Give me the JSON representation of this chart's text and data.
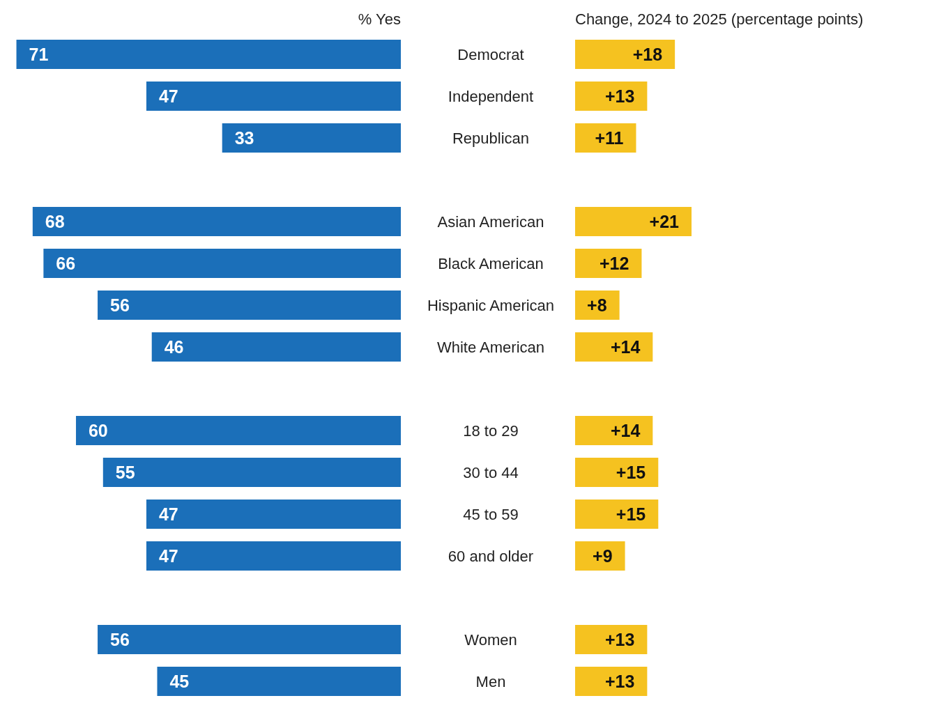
{
  "chart_data": [
    {
      "type": "bar",
      "orientation": "horizontal",
      "title": "% Yes",
      "tick_labels": "y",
      "categories": [
        "Democrat",
        "Independent",
        "Republican",
        null,
        "Asian American",
        "Black American",
        "Hispanic American",
        "White American",
        null,
        "18 to 29",
        "30 to 44",
        "45 to 59",
        "60 and older",
        null,
        "Women",
        "Men"
      ],
      "values": [
        71,
        47,
        33,
        null,
        68,
        66,
        56,
        46,
        null,
        60,
        55,
        47,
        47,
        null,
        56,
        45
      ],
      "color": "#1b6fb9",
      "xlim": [
        73,
        0
      ],
      "data_labels": true
    },
    {
      "type": "bar",
      "orientation": "horizontal",
      "title": "Change, 2024 to 2025 (percentage points)",
      "tick_labels": false,
      "values": [
        18,
        13,
        11,
        null,
        21,
        12,
        8,
        14,
        null,
        14,
        15,
        15,
        9,
        null,
        13,
        13
      ],
      "value_labels": [
        "+18",
        "+13",
        "+11",
        null,
        "+21",
        "+12",
        "+8",
        "+14",
        null,
        "+14",
        "+15",
        "+15",
        "+9",
        null,
        "+13",
        "+13"
      ],
      "color": "#f5c220"
    }
  ]
}
